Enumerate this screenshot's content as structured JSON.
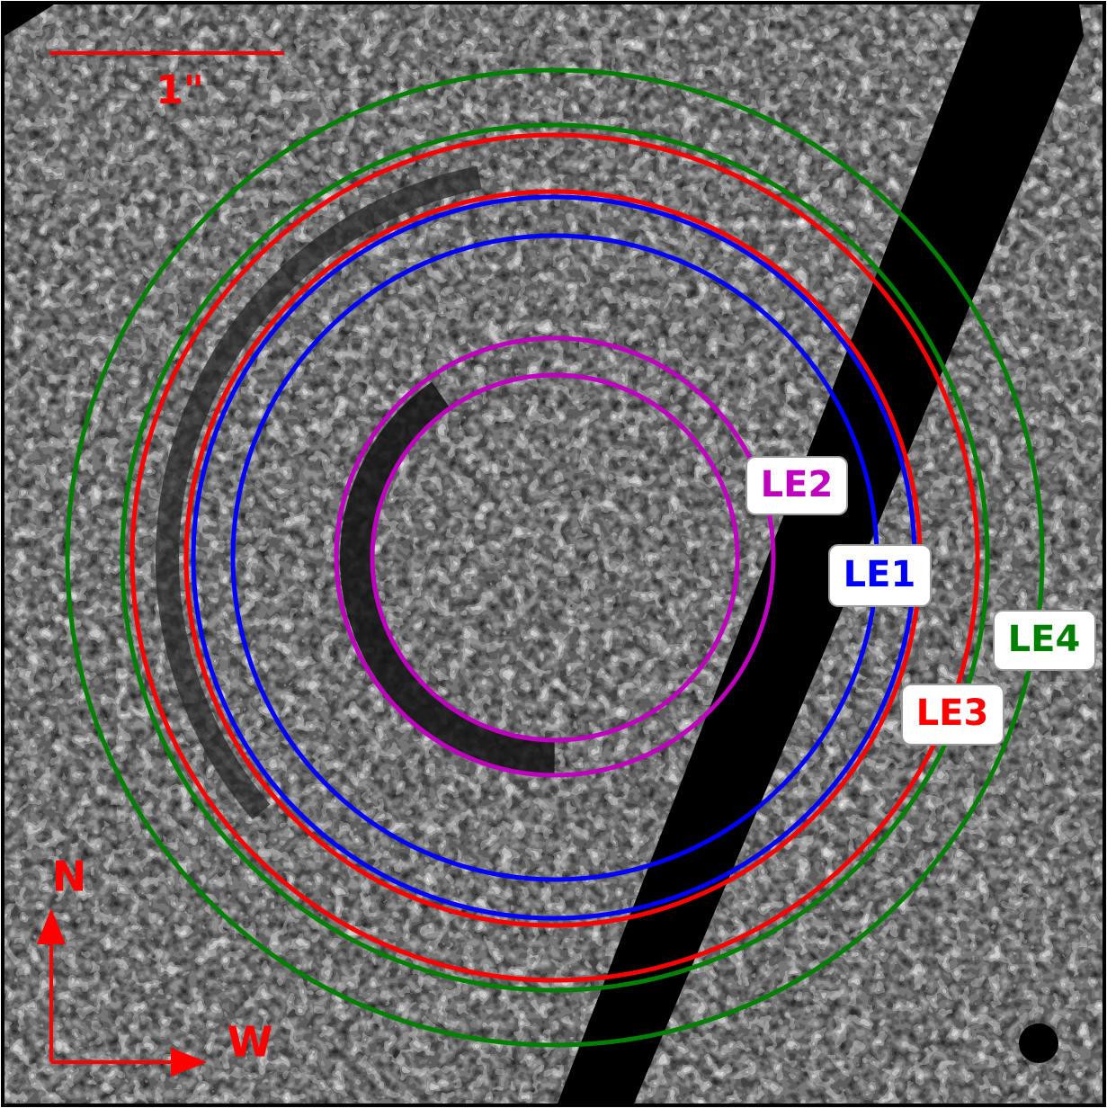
{
  "scale_bar": {
    "label": "1\""
  },
  "compass": {
    "north": "N",
    "west": "W"
  },
  "labels": [
    "LE2",
    "LE1",
    "LE4",
    "LE3"
  ]
}
